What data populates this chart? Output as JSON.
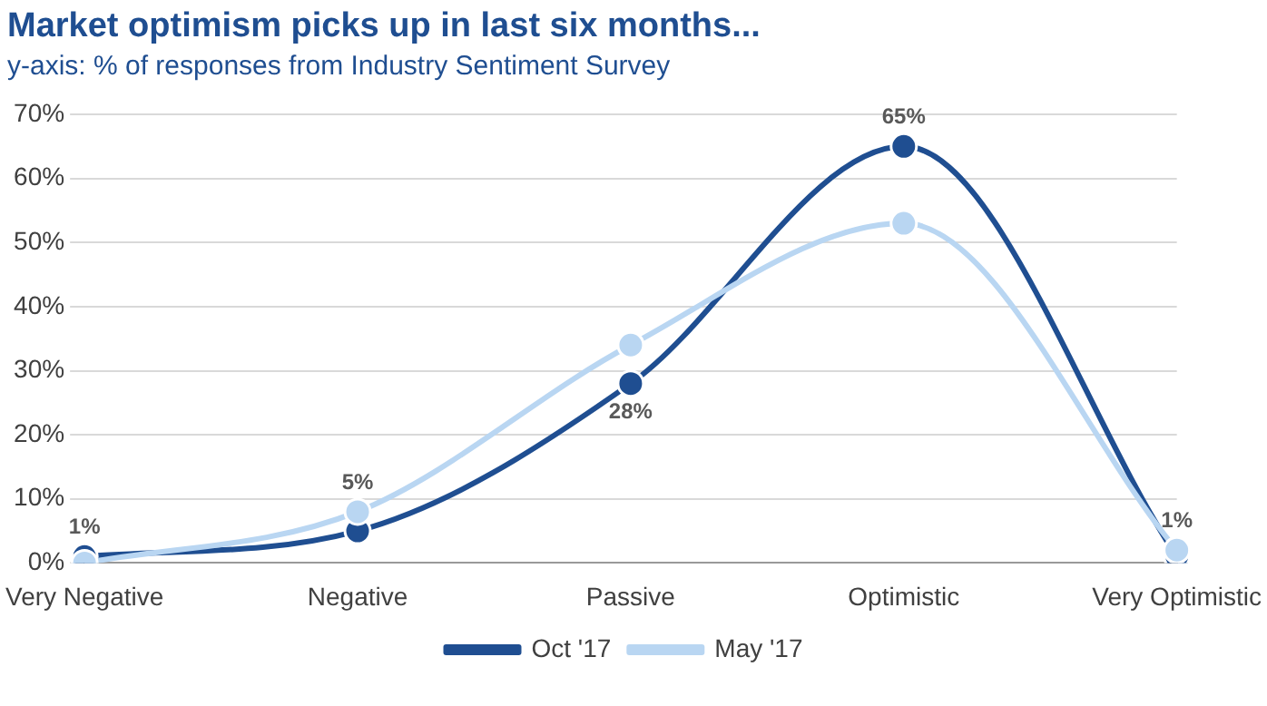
{
  "chart_data": {
    "type": "line",
    "title": "Market optimism picks up in last six months...",
    "subtitle": "y-axis: % of responses from Industry Sentiment Survey",
    "categories": [
      "Very Negative",
      "Negative",
      "Passive",
      "Optimistic",
      "Very Optimistic"
    ],
    "series": [
      {
        "name": "Oct '17",
        "color": "#1f4e91",
        "values": [
          1,
          5,
          28,
          65,
          1
        ],
        "value_labels": [
          "1%",
          "5%",
          "28%",
          "65%",
          "1%"
        ]
      },
      {
        "name": "May '17",
        "color": "#b9d6f2",
        "values": [
          0,
          8,
          34,
          53,
          2
        ]
      }
    ],
    "ylim": [
      0,
      70
    ],
    "yticks": [
      {
        "value": 0,
        "label": "0%"
      },
      {
        "value": 10,
        "label": "10%"
      },
      {
        "value": 20,
        "label": "20%"
      },
      {
        "value": 30,
        "label": "30%"
      },
      {
        "value": 40,
        "label": "40%"
      },
      {
        "value": 50,
        "label": "50%"
      },
      {
        "value": 60,
        "label": "60%"
      },
      {
        "value": 70,
        "label": "70%"
      }
    ],
    "grid": "y",
    "legend": "bottom",
    "marker": "circle",
    "line_style": "solid"
  }
}
